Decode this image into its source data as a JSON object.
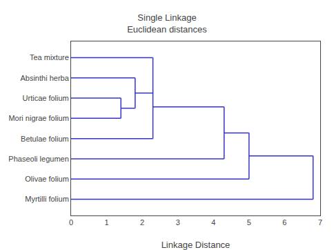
{
  "chart_data": {
    "type": "dendrogram",
    "title": "Single Linkage",
    "subtitle": "Euclidean distances",
    "xlabel": "Linkage Distance",
    "categories": [
      "Tea mixture",
      "Absinthi herba",
      "Urticae folium",
      "Mori nigrae folium",
      "Betulae folium",
      "Phaseoli legumen",
      "Olivae folium",
      "Myrtilli folium"
    ],
    "tree": {
      "distance": 6.8,
      "children": [
        {
          "distance": 5.0,
          "children": [
            {
              "distance": 4.3,
              "children": [
                {
                  "distance": 2.3,
                  "children": [
                    "Tea mixture",
                    {
                      "distance": 1.8,
                      "children": [
                        "Absinthi herba",
                        {
                          "distance": 1.4,
                          "children": [
                            "Urticae folium",
                            "Mori nigrae folium"
                          ]
                        }
                      ]
                    },
                    "Betulae folium"
                  ]
                },
                "Phaseoli legumen"
              ]
            },
            "Olivae folium"
          ]
        },
        "Myrtilli folium"
      ]
    },
    "color": "#3333cc",
    "xlim": [
      0,
      7
    ],
    "xticks": [
      0,
      1,
      2,
      3,
      4,
      5,
      6,
      7
    ],
    "grid": false
  }
}
